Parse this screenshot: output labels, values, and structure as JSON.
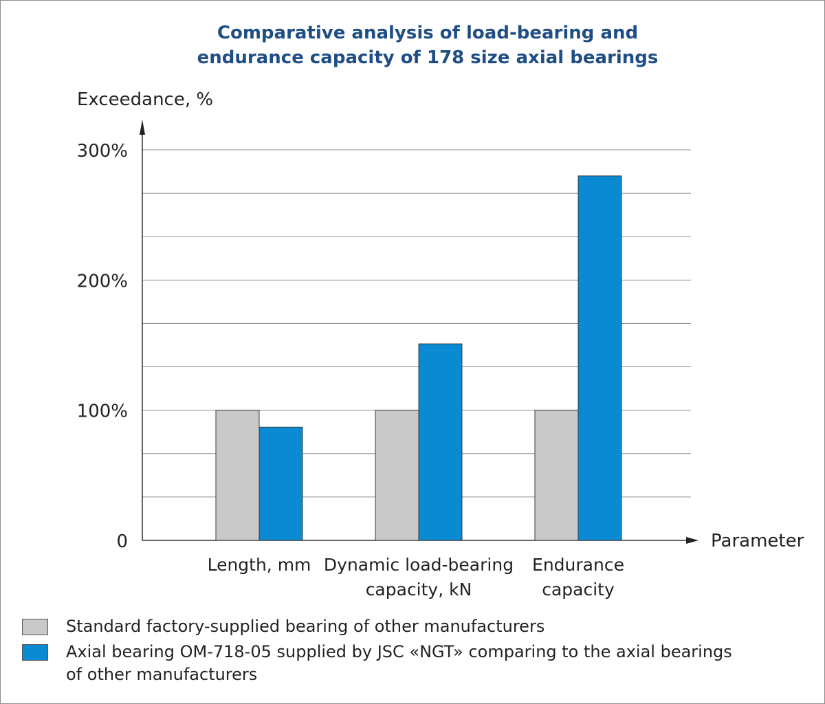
{
  "chart_data": {
    "type": "bar",
    "title_lines": [
      "Comparative analysis of load-bearing and",
      "endurance capacity of 178 size axial bearings"
    ],
    "ylabel": "Exceedance, %",
    "xlabel": "Parameter",
    "ylim": [
      0,
      300
    ],
    "yticks": [
      {
        "value": 0,
        "label": "0"
      },
      {
        "value": 100,
        "label": "100%"
      },
      {
        "value": 200,
        "label": "200%"
      },
      {
        "value": 300,
        "label": "300%"
      }
    ],
    "grid": true,
    "categories": [
      {
        "lines": [
          "Length, mm"
        ]
      },
      {
        "lines": [
          "Dynamic load-bearing",
          "capacity, kN"
        ]
      },
      {
        "lines": [
          "Endurance",
          "capacity"
        ]
      }
    ],
    "series": [
      {
        "name": "Standard factory-supplied bearing of other manufacturers",
        "color": "#c8c9c8",
        "values": [
          100,
          100,
          100
        ]
      },
      {
        "name": "Axial bearing OM-718-05 supplied by JSC «NGT» comparing to the axial bearings of other manufacturers",
        "color": "#0a8ad3",
        "values": [
          87,
          151,
          280
        ]
      }
    ],
    "legend": {
      "placement": "bottom",
      "items": [
        {
          "lines": [
            "Standard factory-supplied bearing of other manufacturers"
          ]
        },
        {
          "lines": [
            "Axial bearing OM-718-05 supplied by JSC «NGT» comparing to the axial bearings",
            "of other manufacturers"
          ]
        }
      ]
    }
  }
}
